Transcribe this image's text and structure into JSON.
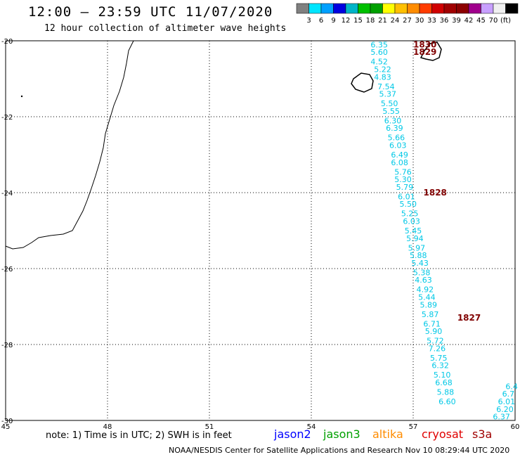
{
  "title": "12:00 – 23:59 UTC 11/07/2020",
  "subtitle": "12 hour collection of altimeter wave heights",
  "colorbar": {
    "colors": [
      "#808080",
      "#00e5ff",
      "#00a0ff",
      "#0000e0",
      "#00b4c8",
      "#00c000",
      "#00a000",
      "#ffff00",
      "#ffc000",
      "#ff8c00",
      "#ff3c00",
      "#d00000",
      "#a00000",
      "#8c0000",
      "#a0008c",
      "#c8a0ff",
      "#f0f0f0",
      "#000000"
    ],
    "labels": [
      "3",
      "6",
      "9",
      "12",
      "15",
      "18",
      "21",
      "24",
      "27",
      "30",
      "33",
      "36",
      "39",
      "42",
      "45",
      "70",
      "(ft)"
    ]
  },
  "note": "note: 1) Time is in UTC; 2) SWH is in feet",
  "missions": [
    {
      "name": "jason2",
      "color": "#0000ff"
    },
    {
      "name": "jason3",
      "color": "#00a000"
    },
    {
      "name": "altika",
      "color": "#ff8c00"
    },
    {
      "name": "cryosat",
      "color": "#e00000"
    },
    {
      "name": "s3a",
      "color": "#a00000"
    }
  ],
  "footer": "NOAA/NESDIS Center for Satellite Applications and Research     Nov 10 08:29:44 UTC 2020",
  "chart_data": {
    "type": "scatter",
    "xlim": [
      45,
      60
    ],
    "ylim": [
      -30,
      -20
    ],
    "x_ticks": [
      "45",
      "48",
      "51",
      "54",
      "57",
      "60"
    ],
    "y_ticks": [
      "-20",
      "-22",
      "-24",
      "-26",
      "-28",
      "-30"
    ],
    "grid": true,
    "series_color": "#00c8e6",
    "time_color": "#800000",
    "time_labels": [
      {
        "text": "1830",
        "lon": 57.0,
        "lat": -20.1
      },
      {
        "text": "1829",
        "lon": 57.0,
        "lat": -20.3
      },
      {
        "text": "1828",
        "lon": 57.3,
        "lat": -24.0
      },
      {
        "text": "1827",
        "lon": 58.3,
        "lat": -27.3
      }
    ],
    "track_main": [
      {
        "lon": 56.0,
        "lat": -20.1,
        "swh": "6.35"
      },
      {
        "lon": 56.0,
        "lat": -20.3,
        "swh": "5.60"
      },
      {
        "lon": 56.0,
        "lat": -20.55,
        "swh": "4.52"
      },
      {
        "lon": 56.1,
        "lat": -20.75,
        "swh": "5.22"
      },
      {
        "lon": 56.1,
        "lat": -20.95,
        "swh": "4.83"
      },
      {
        "lon": 56.2,
        "lat": -21.2,
        "swh": "7.54"
      },
      {
        "lon": 56.25,
        "lat": -21.4,
        "swh": "5.37"
      },
      {
        "lon": 56.3,
        "lat": -21.65,
        "swh": "5.50"
      },
      {
        "lon": 56.35,
        "lat": -21.85,
        "swh": "5.55"
      },
      {
        "lon": 56.4,
        "lat": -22.1,
        "swh": "6.30"
      },
      {
        "lon": 56.45,
        "lat": -22.3,
        "swh": "6.39"
      },
      {
        "lon": 56.5,
        "lat": -22.55,
        "swh": "5.66"
      },
      {
        "lon": 56.55,
        "lat": -22.75,
        "swh": "6.03"
      },
      {
        "lon": 56.6,
        "lat": -23.0,
        "swh": "6.49"
      },
      {
        "lon": 56.6,
        "lat": -23.2,
        "swh": "6.08"
      },
      {
        "lon": 56.7,
        "lat": -23.45,
        "swh": "5.76"
      },
      {
        "lon": 56.7,
        "lat": -23.65,
        "swh": "5.30"
      },
      {
        "lon": 56.75,
        "lat": -23.85,
        "swh": "5.79"
      },
      {
        "lon": 56.8,
        "lat": -24.1,
        "swh": "6.01"
      },
      {
        "lon": 56.85,
        "lat": -24.3,
        "swh": "5.50"
      },
      {
        "lon": 56.9,
        "lat": -24.55,
        "swh": "5.25"
      },
      {
        "lon": 56.95,
        "lat": -24.75,
        "swh": "6.03"
      },
      {
        "lon": 57.0,
        "lat": -25.0,
        "swh": "5.45"
      },
      {
        "lon": 57.05,
        "lat": -25.2,
        "swh": "5.94"
      },
      {
        "lon": 57.1,
        "lat": -25.45,
        "swh": "5.97"
      },
      {
        "lon": 57.15,
        "lat": -25.65,
        "swh": "5.88"
      },
      {
        "lon": 57.2,
        "lat": -25.85,
        "swh": "5.43"
      },
      {
        "lon": 57.25,
        "lat": -26.1,
        "swh": "5.38"
      },
      {
        "lon": 57.3,
        "lat": -26.3,
        "swh": "4.63"
      },
      {
        "lon": 57.35,
        "lat": -26.55,
        "swh": "4.92"
      },
      {
        "lon": 57.4,
        "lat": -26.75,
        "swh": "5.44"
      },
      {
        "lon": 57.45,
        "lat": -26.95,
        "swh": "5.89"
      },
      {
        "lon": 57.5,
        "lat": -27.2,
        "swh": "5.87"
      },
      {
        "lon": 57.55,
        "lat": -27.45,
        "swh": "6.71"
      },
      {
        "lon": 57.6,
        "lat": -27.65,
        "swh": "5.90"
      },
      {
        "lon": 57.65,
        "lat": -27.9,
        "swh": "5.72"
      },
      {
        "lon": 57.7,
        "lat": -28.1,
        "swh": "7.26"
      },
      {
        "lon": 57.75,
        "lat": -28.35,
        "swh": "5.75"
      },
      {
        "lon": 57.8,
        "lat": -28.55,
        "swh": "6.32"
      },
      {
        "lon": 57.85,
        "lat": -28.8,
        "swh": "5.10"
      },
      {
        "lon": 57.9,
        "lat": -29.0,
        "swh": "6.68"
      },
      {
        "lon": 57.95,
        "lat": -29.25,
        "swh": "5.88"
      },
      {
        "lon": 58.0,
        "lat": -29.5,
        "swh": "6.60"
      }
    ],
    "track_secondary": [
      {
        "lon": 59.9,
        "lat": -29.1,
        "swh": "6.4"
      },
      {
        "lon": 59.8,
        "lat": -29.3,
        "swh": "6.7"
      },
      {
        "lon": 59.75,
        "lat": -29.5,
        "swh": "6.01"
      },
      {
        "lon": 59.7,
        "lat": -29.7,
        "swh": "6.20"
      },
      {
        "lon": 59.6,
        "lat": -29.9,
        "swh": "6.37"
      }
    ]
  }
}
